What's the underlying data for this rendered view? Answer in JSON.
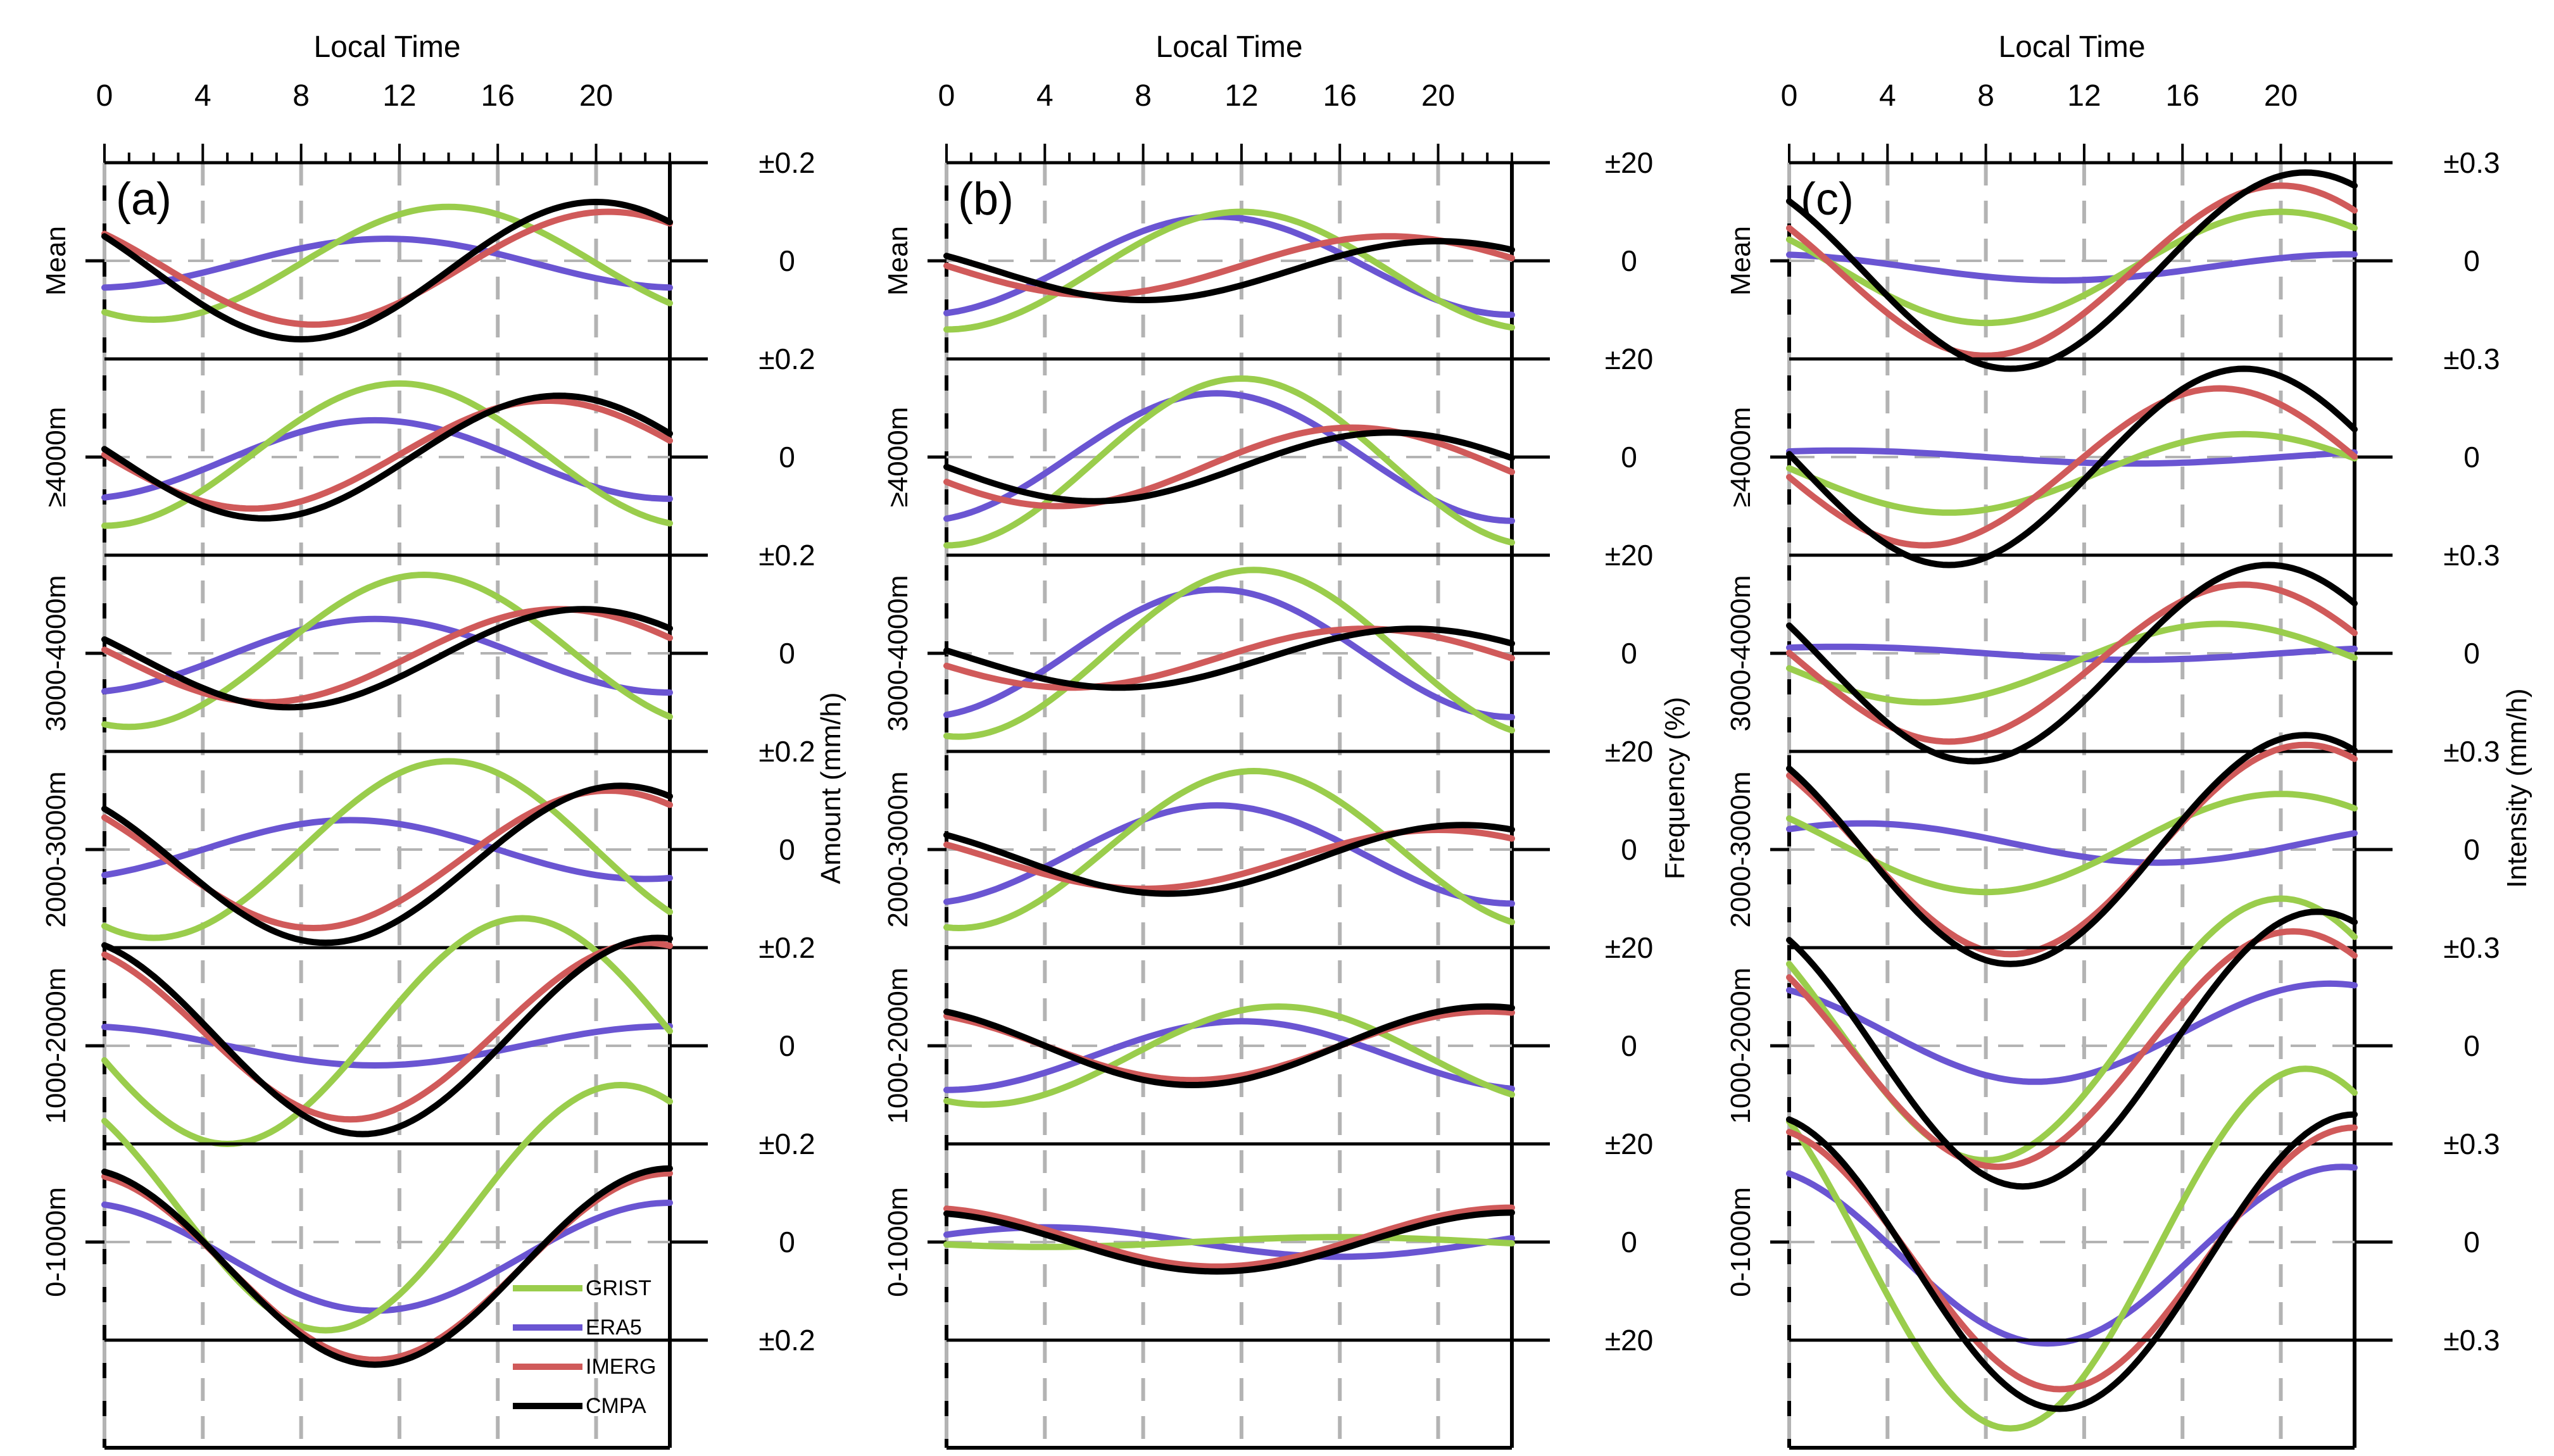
{
  "chart_data": {
    "type": "line",
    "x_label": "Local Time",
    "x_ticks": [
      0,
      4,
      8,
      12,
      16,
      20
    ],
    "xlim": [
      0,
      23
    ],
    "rows": [
      {
        "label": "Mean"
      },
      {
        "label": "≥4000m"
      },
      {
        "label": "3000-4000m"
      },
      {
        "label": "2000-3000m"
      },
      {
        "label": "1000-2000m"
      },
      {
        "label": "0-1000m"
      }
    ],
    "series_styles": [
      {
        "name": "GRIST",
        "color": "#9acd4c"
      },
      {
        "name": "ERA5",
        "color": "#6a55d2"
      },
      {
        "name": "IMERG",
        "color": "#d05a5a"
      },
      {
        "name": "CMPA",
        "color": "#000000"
      }
    ],
    "panels": [
      {
        "tag": "(a)",
        "right_label": "Amount (mm/h)",
        "bound_label": "±0.2",
        "zero_label": "0",
        "range": 0.2,
        "rows": [
          {
            "GRIST": {
              "mean": -0.005,
              "amp": 0.115,
              "peak": 14
            },
            "ERA5": {
              "mean": -0.005,
              "amp": 0.05,
              "peak": 11.5
            },
            "IMERG": {
              "mean": -0.015,
              "amp": 0.115,
              "peak": 20.5
            },
            "CMPA": {
              "mean": -0.02,
              "amp": 0.14,
              "peak": 20
            }
          },
          {
            "GRIST": {
              "mean": 0.005,
              "amp": 0.145,
              "peak": 12
            },
            "ERA5": {
              "mean": -0.005,
              "amp": 0.08,
              "peak": 11
            },
            "IMERG": {
              "mean": 0.005,
              "amp": 0.11,
              "peak": 18
            },
            "CMPA": {
              "mean": 0.0,
              "amp": 0.125,
              "peak": 18.5
            }
          },
          {
            "GRIST": {
              "mean": 0.005,
              "amp": 0.155,
              "peak": 13
            },
            "ERA5": {
              "mean": -0.005,
              "amp": 0.075,
              "peak": 11
            },
            "IMERG": {
              "mean": -0.005,
              "amp": 0.095,
              "peak": 18.5
            },
            "CMPA": {
              "mean": -0.01,
              "amp": 0.1,
              "peak": 19.5
            }
          },
          {
            "GRIST": {
              "mean": 0.0,
              "amp": 0.18,
              "peak": 14
            },
            "ERA5": {
              "mean": 0.0,
              "amp": 0.06,
              "peak": 10
            },
            "IMERG": {
              "mean": -0.02,
              "amp": 0.14,
              "peak": 20.5
            },
            "CMPA": {
              "mean": -0.03,
              "amp": 0.16,
              "peak": 21
            }
          },
          {
            "GRIST": {
              "mean": 0.03,
              "amp": 0.23,
              "peak": 17
            },
            "ERA5": {
              "mean": 0.0,
              "amp": 0.04,
              "peak": 23
            },
            "IMERG": {
              "mean": 0.03,
              "amp": 0.18,
              "peak": 22
            },
            "CMPA": {
              "mean": 0.02,
              "amp": 0.2,
              "peak": 22.5
            }
          },
          {
            "GRIST": {
              "mean": 0.07,
              "amp": 0.25,
              "peak": 21
            },
            "ERA5": {
              "mean": -0.03,
              "amp": 0.11,
              "peak": 23
            },
            "IMERG": {
              "mean": -0.05,
              "amp": 0.19,
              "peak": 23
            },
            "CMPA": {
              "mean": -0.05,
              "amp": 0.2,
              "peak": 23
            }
          }
        ]
      },
      {
        "tag": "(b)",
        "right_label": "Frequency (%)",
        "bound_label": "±20",
        "zero_label": "0",
        "range": 20,
        "rows": [
          {
            "GRIST": {
              "mean": -2,
              "amp": 12,
              "peak": 12
            },
            "ERA5": {
              "mean": -1,
              "amp": 10,
              "peak": 11
            },
            "IMERG": {
              "mean": -1,
              "amp": 6,
              "peak": 18
            },
            "CMPA": {
              "mean": -2,
              "amp": 6,
              "peak": 20
            }
          },
          {
            "GRIST": {
              "mean": -1,
              "amp": 17,
              "peak": 12
            },
            "ERA5": {
              "mean": 0,
              "amp": 13,
              "peak": 11
            },
            "IMERG": {
              "mean": -2,
              "amp": 8,
              "peak": 16.5
            },
            "CMPA": {
              "mean": -2,
              "amp": 7,
              "peak": 18
            }
          },
          {
            "GRIST": {
              "mean": 0,
              "amp": 17,
              "peak": 12.5
            },
            "ERA5": {
              "mean": 0,
              "amp": 13,
              "peak": 11
            },
            "IMERG": {
              "mean": -1,
              "amp": 6,
              "peak": 17
            },
            "CMPA": {
              "mean": -1,
              "amp": 6,
              "peak": 19
            }
          },
          {
            "GRIST": {
              "mean": 0,
              "amp": 16,
              "peak": 12.5
            },
            "ERA5": {
              "mean": -1,
              "amp": 10,
              "peak": 11
            },
            "IMERG": {
              "mean": -2,
              "amp": 6,
              "peak": 20
            },
            "CMPA": {
              "mean": -2,
              "amp": 7,
              "peak": 21
            }
          },
          {
            "GRIST": {
              "mean": -2,
              "amp": 10,
              "peak": 13.5
            },
            "ERA5": {
              "mean": -2,
              "amp": 7,
              "peak": 12
            },
            "IMERG": {
              "mean": 0,
              "amp": 7,
              "peak": 22
            },
            "CMPA": {
              "mean": 0,
              "amp": 8,
              "peak": 22
            }
          },
          {
            "GRIST": {
              "mean": 0,
              "amp": 1,
              "peak": 16
            },
            "ERA5": {
              "mean": 0,
              "amp": 3,
              "peak": 4
            },
            "IMERG": {
              "mean": 1,
              "amp": 6,
              "peak": 23
            },
            "CMPA": {
              "mean": 0,
              "amp": 6,
              "peak": 23
            }
          }
        ]
      },
      {
        "tag": "(c)",
        "right_label": "Intensity (mm/h)",
        "bound_label": "±0.3",
        "zero_label": "0",
        "range": 0.3,
        "rows": [
          {
            "GRIST": {
              "mean": -0.02,
              "amp": 0.17,
              "peak": 20
            },
            "ERA5": {
              "mean": -0.02,
              "amp": 0.04,
              "peak": 23
            },
            "IMERG": {
              "mean": -0.03,
              "amp": 0.26,
              "peak": 20
            },
            "CMPA": {
              "mean": -0.03,
              "amp": 0.3,
              "peak": 21
            }
          },
          {
            "GRIST": {
              "mean": -0.05,
              "amp": 0.12,
              "peak": 18.5
            },
            "ERA5": {
              "mean": 0.0,
              "amp": 0.02,
              "peak": 2
            },
            "IMERG": {
              "mean": -0.03,
              "amp": 0.24,
              "peak": 17.5
            },
            "CMPA": {
              "mean": -0.03,
              "amp": 0.3,
              "peak": 18.5
            }
          },
          {
            "GRIST": {
              "mean": -0.03,
              "amp": 0.12,
              "peak": 17.5
            },
            "ERA5": {
              "mean": 0.0,
              "amp": 0.02,
              "peak": 2
            },
            "IMERG": {
              "mean": -0.03,
              "amp": 0.24,
              "peak": 18.5
            },
            "CMPA": {
              "mean": -0.03,
              "amp": 0.3,
              "peak": 19.5
            }
          },
          {
            "GRIST": {
              "mean": 0.02,
              "amp": 0.15,
              "peak": 20
            },
            "ERA5": {
              "mean": 0.02,
              "amp": 0.06,
              "peak": 3
            },
            "IMERG": {
              "mean": 0.0,
              "amp": 0.32,
              "peak": 21
            },
            "CMPA": {
              "mean": 0.0,
              "amp": 0.35,
              "peak": 21
            }
          },
          {
            "GRIST": {
              "mean": 0.05,
              "amp": 0.4,
              "peak": 20
            },
            "ERA5": {
              "mean": 0.04,
              "amp": 0.15,
              "peak": 22
            },
            "IMERG": {
              "mean": -0.01,
              "amp": 0.36,
              "peak": 20.5
            },
            "CMPA": {
              "mean": -0.01,
              "amp": 0.42,
              "peak": 21.5
            }
          },
          {
            "GRIST": {
              "mean": -0.02,
              "amp": 0.55,
              "peak": 21
            },
            "ERA5": {
              "mean": -0.04,
              "amp": 0.27,
              "peak": 22.5
            },
            "IMERG": {
              "mean": -0.05,
              "amp": 0.4,
              "peak": 23
            },
            "CMPA": {
              "mean": -0.06,
              "amp": 0.45,
              "peak": 23
            }
          }
        ]
      }
    ]
  }
}
